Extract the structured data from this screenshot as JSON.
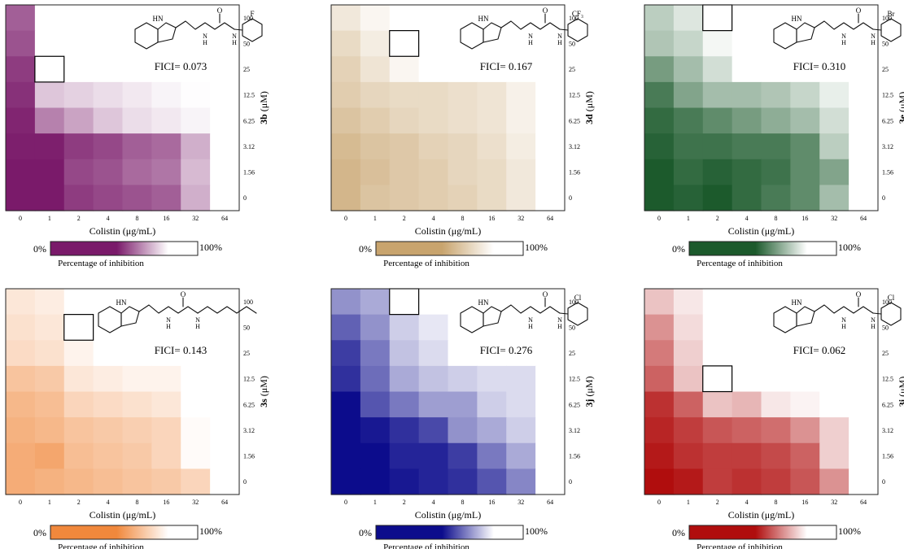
{
  "shared": {
    "xlabel": "Colistin  (μg/mL)",
    "x_ticks": [
      "0",
      "1",
      "2",
      "4",
      "8",
      "16",
      "32",
      "64"
    ],
    "y_ticks": [
      "100",
      "50",
      "25",
      "12.5",
      "6.25",
      "3.12",
      "1.56",
      "0"
    ],
    "y_unit": " (μM)",
    "colorbar_min": "0%",
    "colorbar_max": "100%",
    "colorbar_label": "Percentage of inhibition"
  },
  "chart_data": [
    {
      "type": "heatmap",
      "compound": "3b",
      "ylabel": "3b (μM)",
      "substituent": "F",
      "fici": "FICI= 0.073",
      "color": "#7a1a6a",
      "value_scale": "percentage of inhibition, 0 = full colour, 100 = white",
      "mic_box": {
        "x_index": 1,
        "y_index": 2
      },
      "values": [
        [
          30,
          100,
          100,
          100,
          100,
          100,
          100,
          100
        ],
        [
          25,
          100,
          100,
          100,
          100,
          100,
          100,
          100
        ],
        [
          15,
          100,
          100,
          100,
          100,
          100,
          100,
          100
        ],
        [
          10,
          75,
          80,
          85,
          90,
          95,
          99,
          100
        ],
        [
          5,
          45,
          60,
          75,
          85,
          90,
          95,
          100
        ],
        [
          2,
          2,
          15,
          20,
          30,
          35,
          65,
          100
        ],
        [
          0,
          0,
          20,
          25,
          35,
          40,
          70,
          100
        ],
        [
          0,
          0,
          15,
          20,
          25,
          30,
          65,
          100
        ]
      ]
    },
    {
      "type": "heatmap",
      "compound": "3d",
      "ylabel": "3d (μM)",
      "substituent": "CF₃",
      "fici": "FICI= 0.167",
      "color": "#c8a46e",
      "value_scale": "percentage of inhibition, 0 = full colour, 100 = white",
      "mic_box": {
        "x_index": 2,
        "y_index": 1
      },
      "values": [
        [
          75,
          90,
          100,
          100,
          100,
          100,
          100,
          100
        ],
        [
          60,
          80,
          100,
          100,
          100,
          100,
          100,
          100
        ],
        [
          50,
          70,
          90,
          100,
          100,
          100,
          100,
          100
        ],
        [
          45,
          55,
          60,
          60,
          65,
          70,
          85,
          100
        ],
        [
          35,
          45,
          55,
          60,
          65,
          70,
          85,
          100
        ],
        [
          25,
          35,
          40,
          50,
          55,
          65,
          80,
          100
        ],
        [
          20,
          30,
          40,
          45,
          55,
          60,
          75,
          100
        ],
        [
          20,
          35,
          40,
          45,
          50,
          60,
          75,
          100
        ]
      ]
    },
    {
      "type": "heatmap",
      "compound": "3e",
      "ylabel": "3e (μM)",
      "substituent": "Br",
      "fici": "FICI= 0.310",
      "color": "#1c5a2c",
      "value_scale": "percentage of inhibition, 0 = full colour, 100 = white",
      "mic_box": {
        "x_index": 2,
        "y_index": 0
      },
      "values": [
        [
          70,
          85,
          100,
          100,
          100,
          100,
          100,
          100
        ],
        [
          65,
          75,
          95,
          100,
          100,
          100,
          100,
          100
        ],
        [
          40,
          60,
          80,
          100,
          100,
          100,
          100,
          100
        ],
        [
          20,
          45,
          60,
          60,
          65,
          75,
          90,
          100
        ],
        [
          10,
          20,
          30,
          40,
          50,
          60,
          80,
          100
        ],
        [
          5,
          15,
          15,
          20,
          20,
          30,
          70,
          100
        ],
        [
          0,
          10,
          5,
          10,
          15,
          30,
          45,
          100
        ],
        [
          0,
          5,
          0,
          10,
          20,
          30,
          60,
          100
        ]
      ]
    },
    {
      "type": "heatmap",
      "compound": "3s",
      "ylabel": "3s (μM)",
      "substituent": "",
      "fici": "FICI= 0.143",
      "color": "#f0883c",
      "value_scale": "percentage of inhibition, 0 = full colour, 100 = white",
      "mic_box": {
        "x_index": 2,
        "y_index": 1
      },
      "values": [
        [
          80,
          85,
          100,
          100,
          100,
          100,
          100,
          100
        ],
        [
          75,
          80,
          100,
          100,
          100,
          100,
          100,
          100
        ],
        [
          70,
          75,
          90,
          100,
          100,
          100,
          100,
          100
        ],
        [
          50,
          55,
          80,
          85,
          90,
          90,
          100,
          100
        ],
        [
          40,
          45,
          65,
          70,
          75,
          80,
          100,
          100
        ],
        [
          35,
          40,
          50,
          55,
          60,
          65,
          97,
          100
        ],
        [
          30,
          25,
          45,
          50,
          55,
          65,
          97,
          100
        ],
        [
          30,
          35,
          40,
          45,
          50,
          55,
          65,
          100
        ]
      ]
    },
    {
      "type": "heatmap",
      "compound": "3j",
      "ylabel": "3j (μM)",
      "substituent": "Cl",
      "fici": "FICI= 0.276",
      "color": "#0c0c8c",
      "value_scale": "percentage of inhibition, 0 = full colour, 100 = white",
      "mic_box": {
        "x_index": 2,
        "y_index": 0
      },
      "values": [
        [
          55,
          65,
          100,
          100,
          100,
          100,
          100,
          100
        ],
        [
          35,
          55,
          80,
          90,
          100,
          100,
          100,
          100
        ],
        [
          20,
          45,
          75,
          85,
          100,
          100,
          100,
          100
        ],
        [
          15,
          40,
          65,
          75,
          80,
          85,
          85,
          100
        ],
        [
          0,
          30,
          45,
          60,
          60,
          80,
          85,
          100
        ],
        [
          0,
          5,
          15,
          25,
          55,
          65,
          80,
          100
        ],
        [
          0,
          0,
          10,
          10,
          20,
          45,
          65,
          100
        ],
        [
          0,
          0,
          5,
          10,
          15,
          30,
          50,
          100
        ]
      ]
    },
    {
      "type": "heatmap",
      "compound": "3i",
      "ylabel": "3i (μM)",
      "substituent": "Cl",
      "fici": "FICI= 0.062",
      "color": "#b00d0d",
      "value_scale": "percentage of inhibition, 0 = full colour, 100 = white",
      "mic_box": {
        "x_index": 2,
        "y_index": 3
      },
      "values": [
        [
          75,
          90,
          100,
          100,
          100,
          100,
          100,
          100
        ],
        [
          55,
          85,
          100,
          100,
          100,
          100,
          100,
          100
        ],
        [
          45,
          80,
          100,
          100,
          100,
          100,
          100,
          100
        ],
        [
          35,
          75,
          100,
          100,
          100,
          100,
          100,
          100
        ],
        [
          15,
          35,
          75,
          70,
          90,
          95,
          100,
          100
        ],
        [
          10,
          20,
          30,
          35,
          40,
          55,
          80,
          100
        ],
        [
          5,
          15,
          20,
          20,
          25,
          35,
          80,
          100
        ],
        [
          0,
          5,
          20,
          15,
          20,
          30,
          55,
          100
        ]
      ]
    }
  ]
}
